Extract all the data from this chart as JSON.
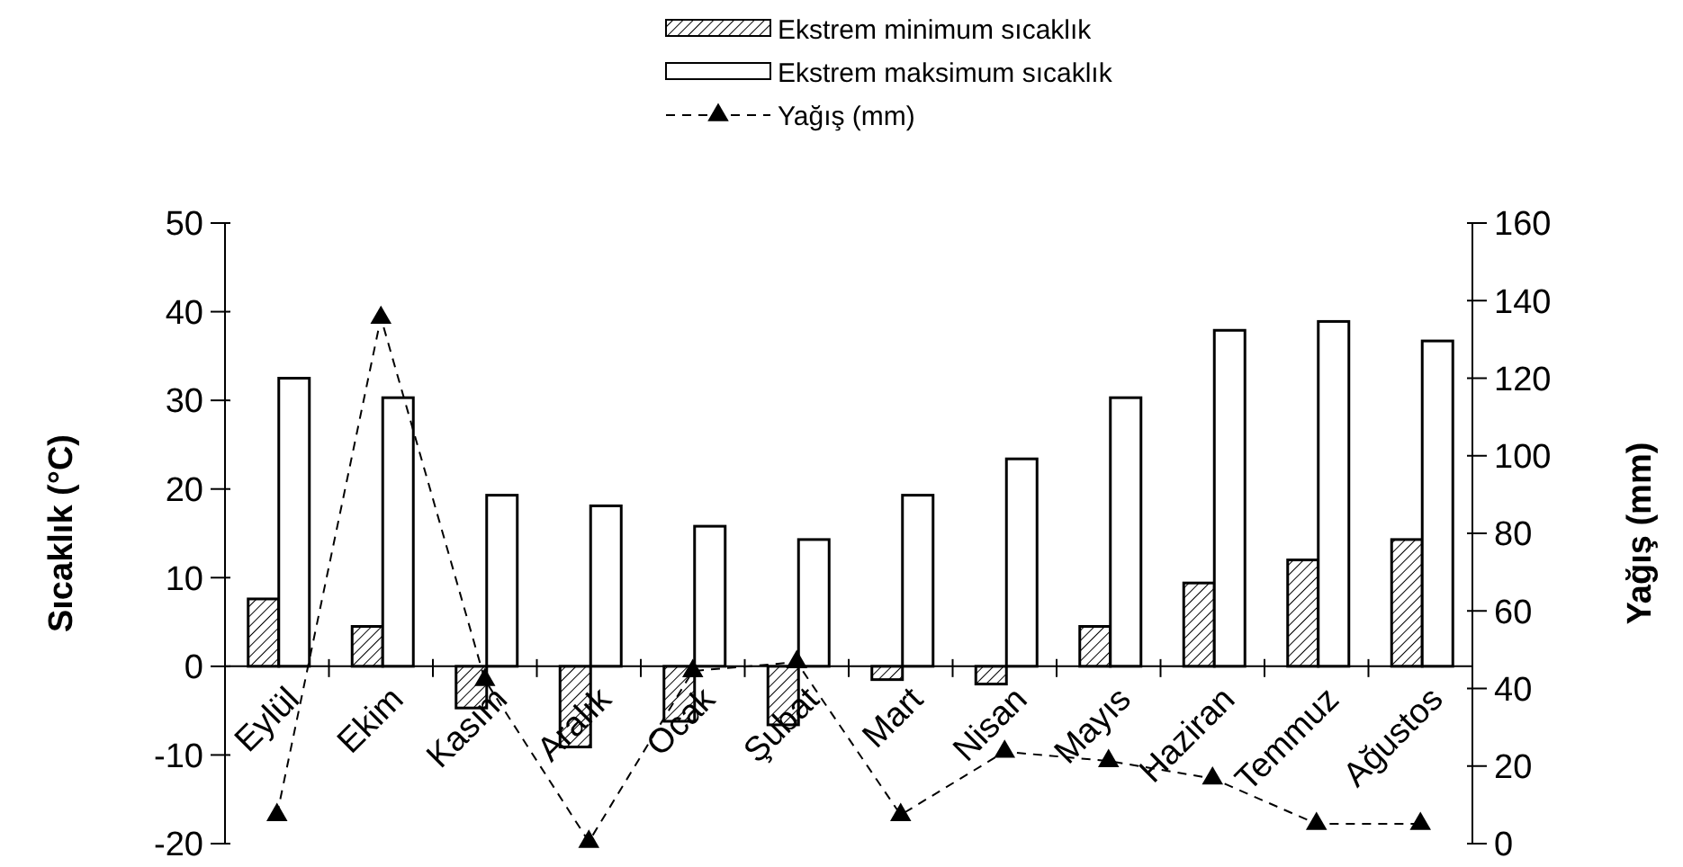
{
  "chart_data": {
    "type": "bar",
    "categories": [
      "Eylül",
      "Ekim",
      "Kasım",
      "Aralık",
      "Ocak",
      "Şubat",
      "Mart",
      "Nisan",
      "Mayıs",
      "Haziran",
      "Temmuz",
      "Ağustos"
    ],
    "series": [
      {
        "name": "Ekstrem minimum sıcaklık",
        "color": "#000000",
        "values": [
          7.6,
          4.5,
          -4.7,
          -9.1,
          -6.2,
          -6.6,
          -1.5,
          -2.0,
          4.5,
          9.4,
          12.0,
          14.3
        ]
      },
      {
        "name": "Ekstrem maksimum sıcaklık",
        "color": "#ffffff",
        "values": [
          32.5,
          30.3,
          19.3,
          18.1,
          15.8,
          14.3,
          19.3,
          23.4,
          30.3,
          37.9,
          38.9,
          36.7
        ]
      },
      {
        "name": "Yağış (mm)",
        "type": "line",
        "axis": "y2",
        "color": "#000000",
        "marker": "triangle",
        "line_style": "dashed",
        "values": [
          7.4,
          135.6,
          42.2,
          0.5,
          44.5,
          46.8,
          7.4,
          23.7,
          21.3,
          16.8,
          5.1,
          5.1
        ]
      }
    ],
    "ylabel": "Sıcaklık (°C)",
    "y2label": "Yağış (mm)",
    "ylim": [
      -20,
      50
    ],
    "yticks": [
      -20,
      -10,
      0,
      10,
      20,
      30,
      40,
      50
    ],
    "y2lim": [
      0,
      160
    ],
    "y2ticks": [
      0,
      20,
      40,
      60,
      80,
      100,
      120,
      140,
      160
    ],
    "legend": "top"
  }
}
